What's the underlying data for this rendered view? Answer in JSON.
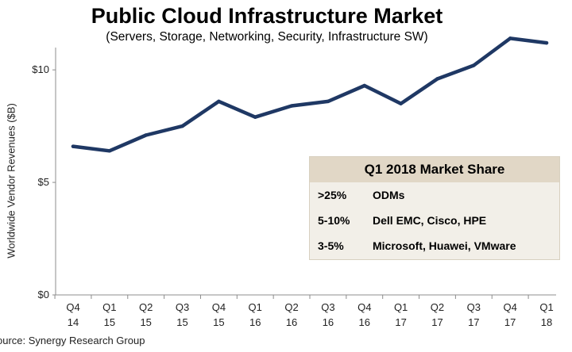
{
  "chart_data": {
    "type": "line",
    "title": "Public Cloud Infrastructure Market",
    "subtitle": "(Servers, Storage, Networking, Security, Infrastructure SW)",
    "ylabel": "Worldwide Vendor Revenues ($B)",
    "xlabel": "",
    "categories": [
      [
        "Q4",
        "14"
      ],
      [
        "Q1",
        "15"
      ],
      [
        "Q2",
        "15"
      ],
      [
        "Q3",
        "15"
      ],
      [
        "Q4",
        "15"
      ],
      [
        "Q1",
        "16"
      ],
      [
        "Q2",
        "16"
      ],
      [
        "Q3",
        "16"
      ],
      [
        "Q4",
        "16"
      ],
      [
        "Q1",
        "17"
      ],
      [
        "Q2",
        "17"
      ],
      [
        "Q3",
        "17"
      ],
      [
        "Q4",
        "17"
      ],
      [
        "Q1",
        "18"
      ]
    ],
    "series": [
      {
        "name": "",
        "color": "#1f3864",
        "values": [
          6.6,
          6.4,
          7.1,
          7.5,
          8.6,
          7.9,
          8.4,
          8.6,
          9.3,
          8.5,
          9.6,
          10.2,
          11.4,
          11.2
        ]
      }
    ],
    "yticks": [
      {
        "value": 0,
        "label": "$0"
      },
      {
        "value": 5,
        "label": "$5"
      },
      {
        "value": 10,
        "label": "$10"
      }
    ],
    "ylim": [
      0,
      12.4
    ],
    "grid": false,
    "legend": "none"
  },
  "market_share": {
    "title": "Q1 2018 Market Share",
    "rows": [
      {
        "pct": ">25%",
        "vendors": "ODMs"
      },
      {
        "pct": "5-10%",
        "vendors": "Dell EMC, Cisco, HPE"
      },
      {
        "pct": "3-5%",
        "vendors": "Microsoft, Huawei, VMware"
      }
    ],
    "header_color": "#e1d7c6",
    "body_color": "#f2efe8"
  },
  "source": "ource: Synergy Research Group"
}
